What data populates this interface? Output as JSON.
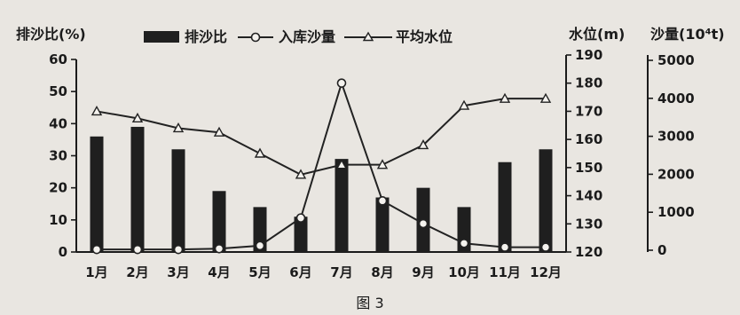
{
  "caption": "图 3",
  "chart_data": {
    "type": "bar+line",
    "categories": [
      "1月",
      "2月",
      "3月",
      "4月",
      "5月",
      "6月",
      "7月",
      "8月",
      "9月",
      "10月",
      "11月",
      "12月"
    ],
    "series": [
      {
        "name": "排沙比",
        "type": "bar",
        "axis": "left",
        "values": [
          36,
          39,
          32,
          19,
          14,
          11,
          29,
          17,
          20,
          14,
          28,
          32
        ]
      },
      {
        "name": "入库沙量",
        "type": "line",
        "marker": "circle",
        "axis": "right-outer",
        "values": [
          20,
          20,
          20,
          40,
          120,
          850,
          4400,
          1300,
          700,
          180,
          80,
          80
        ]
      },
      {
        "name": "平均水位",
        "type": "line",
        "marker": "triangle",
        "axis": "right-inner",
        "values": [
          170,
          167.5,
          164,
          162.5,
          155,
          147.5,
          151,
          151,
          158,
          172,
          174.5,
          174.5
        ]
      }
    ],
    "axes": {
      "left": {
        "label": "排沙比(%)",
        "range": [
          0,
          60
        ],
        "ticks": [
          0,
          10,
          20,
          30,
          40,
          50,
          60
        ]
      },
      "right_inner": {
        "label": "水位(m)",
        "range": [
          120,
          190
        ],
        "ticks": [
          120,
          130,
          140,
          150,
          160,
          170,
          180,
          190
        ]
      },
      "right_outer": {
        "label": "沙量(10⁴t)",
        "range": [
          0,
          5000
        ],
        "ticks": [
          0,
          1000,
          2000,
          3000,
          4000,
          5000
        ]
      }
    },
    "legend": {
      "placement": "top"
    },
    "grid": false
  },
  "colors": {
    "bar": "#1f1f1f",
    "line": "#222222",
    "background": "#e9e6e1"
  }
}
